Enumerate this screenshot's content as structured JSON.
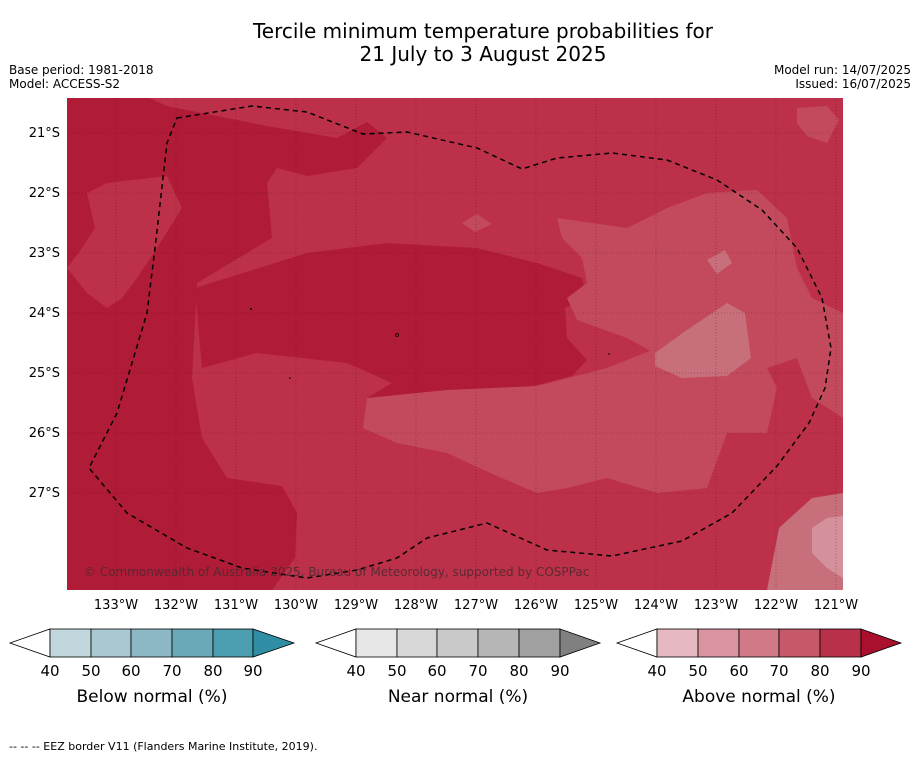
{
  "title_line1": "Tercile minimum temperature probabilities for",
  "title_line2": "21 July to 3 August 2025",
  "base_period": "Base period: 1981-2018",
  "model": "Model: ACCESS-S2",
  "model_run": "Model run: 14/07/2025",
  "issued": "Issued: 16/07/2025",
  "copyright": "© Commonwealth of Australia 2025, Bureau of Meteorology, supported by COSPPac",
  "lat_labels": [
    "21°S",
    "22°S",
    "23°S",
    "24°S",
    "25°S",
    "26°S",
    "27°S"
  ],
  "lon_labels": [
    "133°W",
    "132°W",
    "131°W",
    "130°W",
    "129°W",
    "128°W",
    "127°W",
    "126°W",
    "125°W",
    "124°W",
    "123°W",
    "122°W",
    "121°W"
  ],
  "colorbars": [
    {
      "label": "Below normal (%)",
      "ticks": [
        "40",
        "50",
        "60",
        "70",
        "80",
        "90"
      ],
      "colors": [
        "#ffffff",
        "#c2d7dd",
        "#a8c9d1",
        "#8bb8c4",
        "#6aa9b7",
        "#4a9eb0",
        "#2f8ea4"
      ]
    },
    {
      "label": "Near normal (%)",
      "ticks": [
        "40",
        "50",
        "60",
        "70",
        "80",
        "90"
      ],
      "colors": [
        "#ffffff",
        "#e6e6e6",
        "#d8d8d8",
        "#c9c9c9",
        "#b6b6b6",
        "#a0a0a0",
        "#808080"
      ]
    },
    {
      "label": "Above normal (%)",
      "ticks": [
        "40",
        "50",
        "60",
        "70",
        "80",
        "90"
      ],
      "colors": [
        "#ffffff",
        "#e6b8c1",
        "#d9949f",
        "#cf7a86",
        "#c55869",
        "#b83049",
        "#a8102e"
      ]
    }
  ],
  "footer": "--  --  -- EEZ border V11 (Flanders Marine Institute, 2019).",
  "map_colors": {
    "dark": "#b01b37",
    "mid": "#bd3049",
    "light": "#c24a5c",
    "lighter": "#c86f7c",
    "lightest": "#d4919b"
  }
}
